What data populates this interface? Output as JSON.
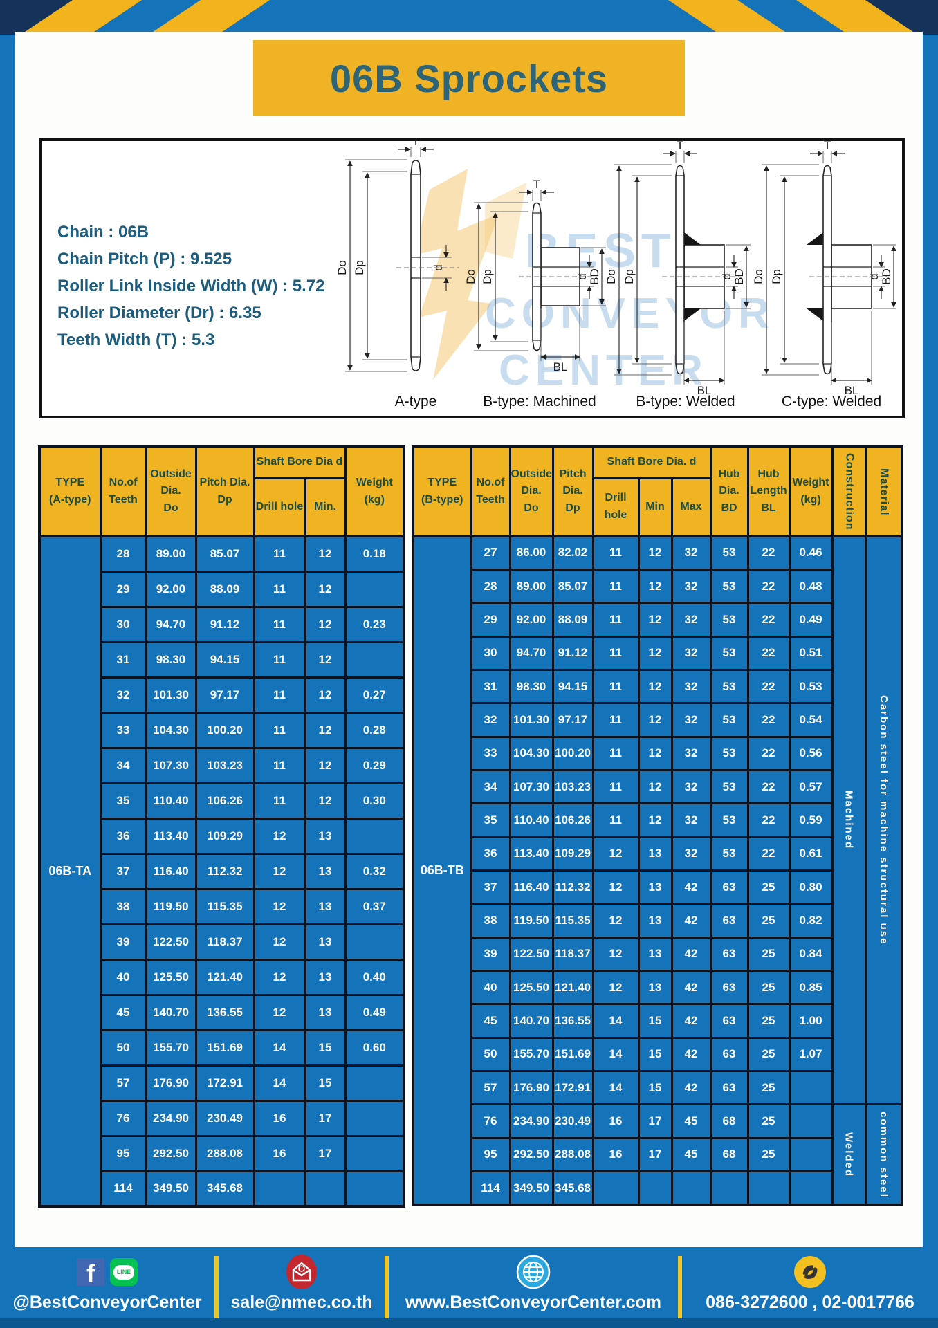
{
  "title": "06B Sprockets",
  "specs": {
    "lines": [
      "Chain  : 06B",
      "Chain Pitch (P)  :  9.525",
      "Roller Link Inside Width (W)  :  5.72",
      "Roller Diameter (Dr)  : 6.35",
      "Teeth Width (T)  :  5.3"
    ]
  },
  "drawings": {
    "labels": {
      "a": "A-type",
      "b_machined": "B-type: Machined",
      "b_welded": "B-type: Welded",
      "c_welded": "C-type: Welded"
    },
    "dims": {
      "t": "T",
      "doo": "Do",
      "dp": "Dp",
      "d": "d",
      "bd": "BD",
      "bl": "BL"
    },
    "watermark": {
      "l1": "BEST",
      "l2": "CONVEYOR",
      "l3": "CENTER"
    }
  },
  "table_a": {
    "type_label": "06B-TA",
    "header": {
      "type1": "TYPE",
      "type2": "(A-type)",
      "teeth1": "No.of",
      "teeth2": "Teeth",
      "out1": "Outside",
      "out2": "Dia.",
      "out3": "Do",
      "pitch1": "Pitch Dia.",
      "pitch2": "Dp",
      "bore": "Shaft Bore Dia d",
      "drill": "Drill hole",
      "min": "Min.",
      "wt1": "Weight",
      "wt2": "(kg)"
    },
    "rows": [
      [
        "28",
        "89.00",
        "85.07",
        "11",
        "12",
        "0.18"
      ],
      [
        "29",
        "92.00",
        "88.09",
        "11",
        "12",
        ""
      ],
      [
        "30",
        "94.70",
        "91.12",
        "11",
        "12",
        "0.23"
      ],
      [
        "31",
        "98.30",
        "94.15",
        "11",
        "12",
        ""
      ],
      [
        "32",
        "101.30",
        "97.17",
        "11",
        "12",
        "0.27"
      ],
      [
        "33",
        "104.30",
        "100.20",
        "11",
        "12",
        "0.28"
      ],
      [
        "34",
        "107.30",
        "103.23",
        "11",
        "12",
        "0.29"
      ],
      [
        "35",
        "110.40",
        "106.26",
        "11",
        "12",
        "0.30"
      ],
      [
        "36",
        "113.40",
        "109.29",
        "12",
        "13",
        ""
      ],
      [
        "37",
        "116.40",
        "112.32",
        "12",
        "13",
        "0.32"
      ],
      [
        "38",
        "119.50",
        "115.35",
        "12",
        "13",
        "0.37"
      ],
      [
        "39",
        "122.50",
        "118.37",
        "12",
        "13",
        ""
      ],
      [
        "40",
        "125.50",
        "121.40",
        "12",
        "13",
        "0.40"
      ],
      [
        "45",
        "140.70",
        "136.55",
        "12",
        "13",
        "0.49"
      ],
      [
        "50",
        "155.70",
        "151.69",
        "14",
        "15",
        "0.60"
      ],
      [
        "57",
        "176.90",
        "172.91",
        "14",
        "15",
        ""
      ],
      [
        "76",
        "234.90",
        "230.49",
        "16",
        "17",
        ""
      ],
      [
        "95",
        "292.50",
        "288.08",
        "16",
        "17",
        ""
      ],
      [
        "114",
        "349.50",
        "345.68",
        "",
        "",
        ""
      ]
    ]
  },
  "table_b": {
    "type_label": "06B-TB",
    "header": {
      "type1": "TYPE",
      "type2": "(B-type)",
      "teeth1": "No.of",
      "teeth2": "Teeth",
      "out1": "Outside",
      "out2": "Dia.",
      "out3": "Do",
      "pitch1": "Pitch",
      "pitch2": "Dia.",
      "pitch3": "Dp",
      "bore": "Shaft Bore Dia. d",
      "drill": "Drill hole",
      "min": "Min",
      "max": "Max",
      "hubd1": "Hub",
      "hubd2": "Dia.",
      "hubd3": "BD",
      "hubl1": "Hub",
      "hubl2": "Length",
      "hubl3": "BL",
      "wt1": "Weight",
      "wt2": "(kg)",
      "construction": "Construction",
      "material": "Material"
    },
    "rows": [
      [
        "27",
        "86.00",
        "82.02",
        "11",
        "12",
        "32",
        "53",
        "22",
        "0.46"
      ],
      [
        "28",
        "89.00",
        "85.07",
        "11",
        "12",
        "32",
        "53",
        "22",
        "0.48"
      ],
      [
        "29",
        "92.00",
        "88.09",
        "11",
        "12",
        "32",
        "53",
        "22",
        "0.49"
      ],
      [
        "30",
        "94.70",
        "91.12",
        "11",
        "12",
        "32",
        "53",
        "22",
        "0.51"
      ],
      [
        "31",
        "98.30",
        "94.15",
        "11",
        "12",
        "32",
        "53",
        "22",
        "0.53"
      ],
      [
        "32",
        "101.30",
        "97.17",
        "11",
        "12",
        "32",
        "53",
        "22",
        "0.54"
      ],
      [
        "33",
        "104.30",
        "100.20",
        "11",
        "12",
        "32",
        "53",
        "22",
        "0.56"
      ],
      [
        "34",
        "107.30",
        "103.23",
        "11",
        "12",
        "32",
        "53",
        "22",
        "0.57"
      ],
      [
        "35",
        "110.40",
        "106.26",
        "11",
        "12",
        "32",
        "53",
        "22",
        "0.59"
      ],
      [
        "36",
        "113.40",
        "109.29",
        "12",
        "13",
        "32",
        "53",
        "22",
        "0.61"
      ],
      [
        "37",
        "116.40",
        "112.32",
        "12",
        "13",
        "42",
        "63",
        "25",
        "0.80"
      ],
      [
        "38",
        "119.50",
        "115.35",
        "12",
        "13",
        "42",
        "63",
        "25",
        "0.82"
      ],
      [
        "39",
        "122.50",
        "118.37",
        "12",
        "13",
        "42",
        "63",
        "25",
        "0.84"
      ],
      [
        "40",
        "125.50",
        "121.40",
        "12",
        "13",
        "42",
        "63",
        "25",
        "0.85"
      ],
      [
        "45",
        "140.70",
        "136.55",
        "14",
        "15",
        "42",
        "63",
        "25",
        "1.00"
      ],
      [
        "50",
        "155.70",
        "151.69",
        "14",
        "15",
        "42",
        "63",
        "25",
        "1.07"
      ],
      [
        "57",
        "176.90",
        "172.91",
        "14",
        "15",
        "42",
        "63",
        "25",
        ""
      ],
      [
        "76",
        "234.90",
        "230.49",
        "16",
        "17",
        "45",
        "68",
        "25",
        ""
      ],
      [
        "95",
        "292.50",
        "288.08",
        "16",
        "17",
        "45",
        "68",
        "25",
        ""
      ],
      [
        "114",
        "349.50",
        "345.68",
        "",
        "",
        "",
        "",
        "",
        ""
      ]
    ],
    "span_cols": [
      {
        "name": "construction-group",
        "groups": [
          {
            "label": "Machined",
            "rows": 17
          },
          {
            "label": "Welded",
            "rows": 3
          }
        ]
      },
      {
        "name": "material-group",
        "groups": [
          {
            "label": "Carbon  steel  for  machine  structural  use",
            "rows": 17
          },
          {
            "label": "common steel",
            "rows": 3
          }
        ]
      }
    ]
  },
  "footer": {
    "social": "@BestConveyorCenter",
    "email": "sale@nmec.co.th",
    "website": "www.BestConveyorCenter.com",
    "phones": "086-3272600 , 02-0017766",
    "facebook_letter": "f",
    "line_label": "LINE"
  },
  "colors": {
    "frame_blue": "#1573b9",
    "header_yellow": "#f0b322",
    "cell_blue": "#1573b9",
    "title_teal": "#2d6478",
    "divider_yellow": "#f0c421"
  }
}
